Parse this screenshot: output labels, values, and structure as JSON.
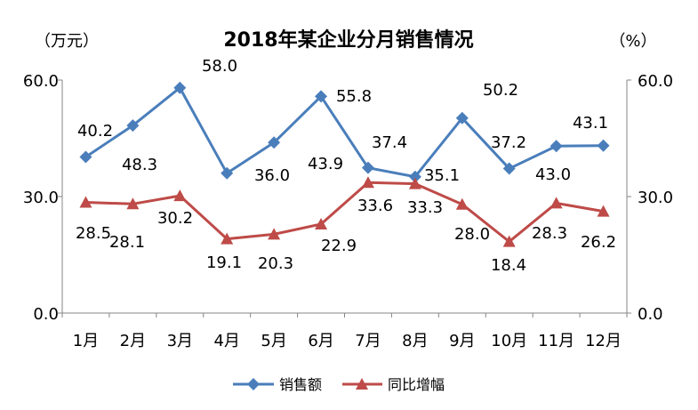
{
  "chart_data": {
    "type": "line",
    "title": "2018年某企业分月销售情况",
    "ylabel_left": "（万元）",
    "ylabel_right": "（%）",
    "categories": [
      "1月",
      "2月",
      "3月",
      "4月",
      "5月",
      "6月",
      "7月",
      "8月",
      "9月",
      "10月",
      "11月",
      "12月"
    ],
    "ylim_left": [
      0,
      60
    ],
    "ylim_right": [
      0,
      60
    ],
    "yticks_left": [
      "0.0",
      "30.0",
      "60.0"
    ],
    "yticks_right": [
      "0.0",
      "30.0",
      "60.0"
    ],
    "grid": false,
    "legend_position": "bottom",
    "series": [
      {
        "name": "销售额",
        "axis": "left",
        "color": "#4a7ebb",
        "marker": "diamond",
        "values": [
          40.2,
          48.3,
          58.0,
          36.0,
          43.9,
          55.8,
          37.4,
          35.1,
          50.2,
          37.2,
          43.0,
          43.1
        ],
        "labels": [
          "40.2",
          "48.3",
          "58.0",
          "36.0",
          "43.9",
          "55.8",
          "37.4",
          "35.1",
          "50.2",
          "37.2",
          "43.0",
          "43.1"
        ]
      },
      {
        "name": "同比增幅",
        "axis": "right",
        "color": "#be4b48",
        "marker": "triangle",
        "values": [
          28.5,
          28.1,
          30.2,
          19.1,
          20.3,
          22.9,
          33.6,
          33.3,
          28.0,
          18.4,
          28.3,
          26.2
        ],
        "labels": [
          "28.5",
          "28.1",
          "30.2",
          "19.1",
          "20.3",
          "22.9",
          "33.6",
          "33.3",
          "28.0",
          "18.4",
          "28.3",
          "26.2"
        ]
      }
    ]
  }
}
